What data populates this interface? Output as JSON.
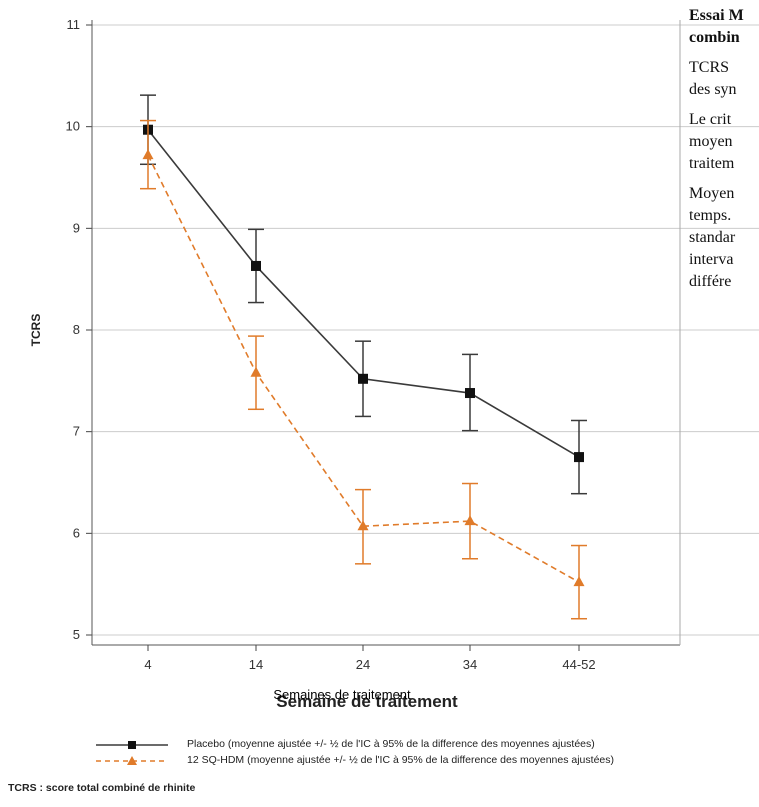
{
  "side_text": {
    "title_line1": "Essai M",
    "title_line2": "combin",
    "para1_line1": "TCRS",
    "para1_line2": "des syn",
    "para2_line1": "Le crit",
    "para2_line2": "moyen",
    "para2_line3": "traitem",
    "para3_line1": "Moyen",
    "para3_line2": "temps.",
    "para3_line3": "standar",
    "para3_line4": "interva",
    "para3_line5": "différe"
  },
  "legend": {
    "placebo": "Placebo (moyenne ajustée +/- ½ de l'IC à 95% de la difference des moyennes ajustées)",
    "hdm": "12 SQ-HDM (moyenne ajustée +/- ½ de l'IC à 95% de la difference des moyennes ajustées)"
  },
  "footnote": "TCRS : score total combiné de rhinite",
  "chart_data": {
    "type": "line",
    "categories": [
      "4",
      "14",
      "24",
      "34",
      "44-52"
    ],
    "ylabel": "TCRS",
    "xlabel": "Semaine de traitement",
    "xlabel_overlay": "Semaines de traitement",
    "ylim": [
      5,
      11
    ],
    "yticks": [
      5,
      6,
      7,
      8,
      9,
      10,
      11
    ],
    "grid": true,
    "colors": {
      "placebo": "#3a3a3a",
      "hdm": "#e07b2a",
      "grid": "#cccccc"
    },
    "series": [
      {
        "key": "placebo",
        "name": "Placebo (moyenne ajustée +/- ½ de l'IC à 95% de la difference des moyennes ajustées)",
        "values": [
          9.97,
          8.63,
          7.52,
          7.38,
          6.75
        ],
        "err_low": [
          9.63,
          8.27,
          7.15,
          7.01,
          6.39
        ],
        "err_high": [
          10.31,
          8.99,
          7.89,
          7.76,
          7.11
        ],
        "marker": "square",
        "dash": false
      },
      {
        "key": "hdm",
        "name": "12 SQ-HDM (moyenne ajustée +/- ½ de l'IC à 95% de la difference des moyennes ajustées)",
        "values": [
          9.72,
          7.58,
          6.07,
          6.12,
          5.52
        ],
        "err_low": [
          9.39,
          7.22,
          5.7,
          5.75,
          5.16
        ],
        "err_high": [
          10.06,
          7.94,
          6.43,
          6.49,
          5.88
        ],
        "marker": "triangle",
        "dash": true
      }
    ]
  }
}
